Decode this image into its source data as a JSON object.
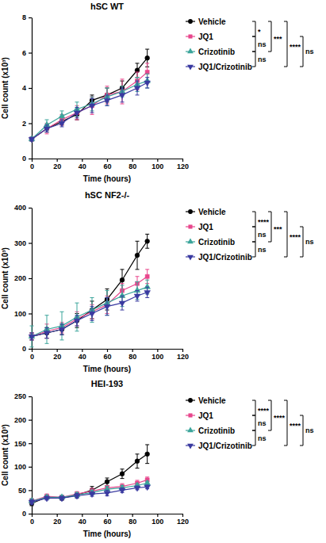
{
  "chart_data": [
    {
      "type": "line",
      "title": "hSC WT",
      "x_label": "Time (hours)",
      "y_label": "Cell count (x10³)",
      "x": [
        0,
        12,
        24,
        36,
        48,
        60,
        72,
        84,
        92
      ],
      "xlim": [
        0,
        120
      ],
      "xticks": [
        0,
        20,
        40,
        60,
        80,
        100,
        120
      ],
      "ylim": [
        0,
        8
      ],
      "yticks": [
        0,
        2,
        4,
        6,
        8
      ],
      "series": [
        {
          "name": "Vehicle",
          "color": "#000000",
          "marker": "circle",
          "values": [
            1.1,
            1.7,
            2.1,
            2.5,
            3.3,
            3.6,
            4.0,
            5.0,
            5.7
          ],
          "errors": [
            0.1,
            0.2,
            0.2,
            0.3,
            0.3,
            0.4,
            0.4,
            0.4,
            0.5
          ]
        },
        {
          "name": "JQ1",
          "color": "#e8468c",
          "marker": "square",
          "values": [
            1.1,
            1.7,
            2.2,
            2.6,
            3.0,
            3.6,
            3.8,
            4.4,
            4.9
          ],
          "errors": [
            0.1,
            0.3,
            0.3,
            0.4,
            0.5,
            0.5,
            0.7,
            0.5,
            0.5
          ]
        },
        {
          "name": "Crizotinib",
          "color": "#3ba59b",
          "marker": "triangle-up",
          "values": [
            1.1,
            1.9,
            2.4,
            2.8,
            3.1,
            3.5,
            3.8,
            4.2,
            4.4
          ],
          "errors": [
            0.1,
            0.3,
            0.3,
            0.4,
            0.4,
            0.5,
            0.3,
            0.4,
            0.4
          ]
        },
        {
          "name": "JQ1/Crizotinib",
          "color": "#3a3aa0",
          "marker": "triangle-down",
          "values": [
            1.1,
            1.7,
            2.0,
            2.6,
            3.0,
            3.3,
            3.6,
            4.0,
            4.3
          ],
          "errors": [
            0.1,
            0.2,
            0.2,
            0.3,
            0.4,
            0.3,
            0.4,
            0.4,
            0.3
          ]
        }
      ],
      "comparisons": [
        {
          "groups": [
            "Vehicle",
            "JQ1"
          ],
          "label": "*"
        },
        {
          "groups": [
            "Vehicle",
            "Crizotinib"
          ],
          "label": "***"
        },
        {
          "groups": [
            "Vehicle",
            "JQ1/Crizotinib"
          ],
          "label": "****"
        },
        {
          "groups": [
            "JQ1",
            "Crizotinib"
          ],
          "label": "ns"
        },
        {
          "groups": [
            "JQ1",
            "JQ1/Crizotinib"
          ],
          "label": "ns"
        },
        {
          "groups": [
            "Crizotinib",
            "JQ1/Crizotinib"
          ],
          "label": "ns"
        }
      ]
    },
    {
      "type": "line",
      "title": "hSC NF2-/-",
      "x_label": "Time (hours)",
      "y_label": "Cell count (x10³)",
      "x": [
        0,
        12,
        24,
        36,
        48,
        60,
        72,
        84,
        92
      ],
      "xlim": [
        0,
        120
      ],
      "xticks": [
        0,
        20,
        40,
        60,
        80,
        100,
        120
      ],
      "ylim": [
        0,
        400
      ],
      "yticks": [
        0,
        100,
        200,
        300,
        400
      ],
      "series": [
        {
          "name": "Vehicle",
          "color": "#000000",
          "marker": "circle",
          "values": [
            35,
            45,
            55,
            80,
            110,
            140,
            195,
            265,
            305
          ],
          "errors": [
            10,
            15,
            15,
            20,
            25,
            30,
            30,
            40,
            20
          ]
        },
        {
          "name": "JQ1",
          "color": "#e8468c",
          "marker": "square",
          "values": [
            35,
            50,
            60,
            85,
            105,
            125,
            165,
            185,
            205
          ],
          "errors": [
            10,
            20,
            15,
            20,
            20,
            25,
            20,
            20,
            20
          ]
        },
        {
          "name": "Crizotinib",
          "color": "#3ba59b",
          "marker": "triangle-up",
          "values": [
            35,
            55,
            65,
            90,
            110,
            130,
            150,
            165,
            175
          ],
          "errors": [
            30,
            40,
            40,
            40,
            35,
            35,
            30,
            25,
            20
          ]
        },
        {
          "name": "JQ1/Crizotinib",
          "color": "#3a3aa0",
          "marker": "triangle-down",
          "values": [
            35,
            45,
            55,
            80,
            100,
            120,
            130,
            150,
            160
          ],
          "errors": [
            10,
            15,
            15,
            15,
            20,
            25,
            20,
            15,
            15
          ]
        }
      ],
      "comparisons": [
        {
          "groups": [
            "Vehicle",
            "JQ1"
          ],
          "label": "****"
        },
        {
          "groups": [
            "Vehicle",
            "Crizotinib"
          ],
          "label": "***"
        },
        {
          "groups": [
            "Vehicle",
            "JQ1/Crizotinib"
          ],
          "label": "****"
        },
        {
          "groups": [
            "JQ1",
            "Crizotinib"
          ],
          "label": "ns"
        },
        {
          "groups": [
            "JQ1",
            "JQ1/Crizotinib"
          ],
          "label": "ns"
        },
        {
          "groups": [
            "Crizotinib",
            "JQ1/Crizotinib"
          ],
          "label": "ns"
        }
      ]
    },
    {
      "type": "line",
      "title": "HEI-193",
      "x_label": "Time (hours)",
      "y_label": "Cell count (x10³)",
      "x": [
        0,
        12,
        24,
        36,
        48,
        60,
        72,
        84,
        92
      ],
      "xlim": [
        0,
        120
      ],
      "xticks": [
        0,
        20,
        40,
        60,
        80,
        100,
        120
      ],
      "ylim": [
        0,
        250
      ],
      "yticks": [
        0,
        50,
        100,
        150,
        200,
        250
      ],
      "series": [
        {
          "name": "Vehicle",
          "color": "#000000",
          "marker": "circle",
          "values": [
            22,
            35,
            33,
            40,
            50,
            68,
            85,
            112,
            127
          ],
          "errors": [
            5,
            4,
            4,
            5,
            8,
            8,
            10,
            15,
            20
          ]
        },
        {
          "name": "JQ1",
          "color": "#e8468c",
          "marker": "square",
          "values": [
            27,
            37,
            35,
            42,
            48,
            55,
            58,
            65,
            72
          ],
          "errors": [
            5,
            5,
            4,
            5,
            6,
            5,
            6,
            6,
            6
          ]
        },
        {
          "name": "Crizotinib",
          "color": "#3ba59b",
          "marker": "triangle-up",
          "values": [
            27,
            35,
            35,
            40,
            45,
            52,
            55,
            60,
            65
          ],
          "errors": [
            5,
            4,
            4,
            5,
            5,
            6,
            5,
            4,
            4
          ]
        },
        {
          "name": "JQ1/Crizotinib",
          "color": "#3a3aa0",
          "marker": "triangle-down",
          "values": [
            25,
            33,
            33,
            38,
            42,
            44,
            50,
            55,
            57
          ],
          "errors": [
            5,
            4,
            4,
            5,
            5,
            6,
            5,
            4,
            4
          ]
        }
      ],
      "comparisons": [
        {
          "groups": [
            "Vehicle",
            "JQ1"
          ],
          "label": "****"
        },
        {
          "groups": [
            "Vehicle",
            "Crizotinib"
          ],
          "label": "****"
        },
        {
          "groups": [
            "Vehicle",
            "JQ1/Crizotinib"
          ],
          "label": "****"
        },
        {
          "groups": [
            "JQ1",
            "Crizotinib"
          ],
          "label": "ns"
        },
        {
          "groups": [
            "JQ1",
            "JQ1/Crizotinib"
          ],
          "label": "ns"
        },
        {
          "groups": [
            "Crizotinib",
            "JQ1/Crizotinib"
          ],
          "label": "ns"
        }
      ]
    }
  ]
}
